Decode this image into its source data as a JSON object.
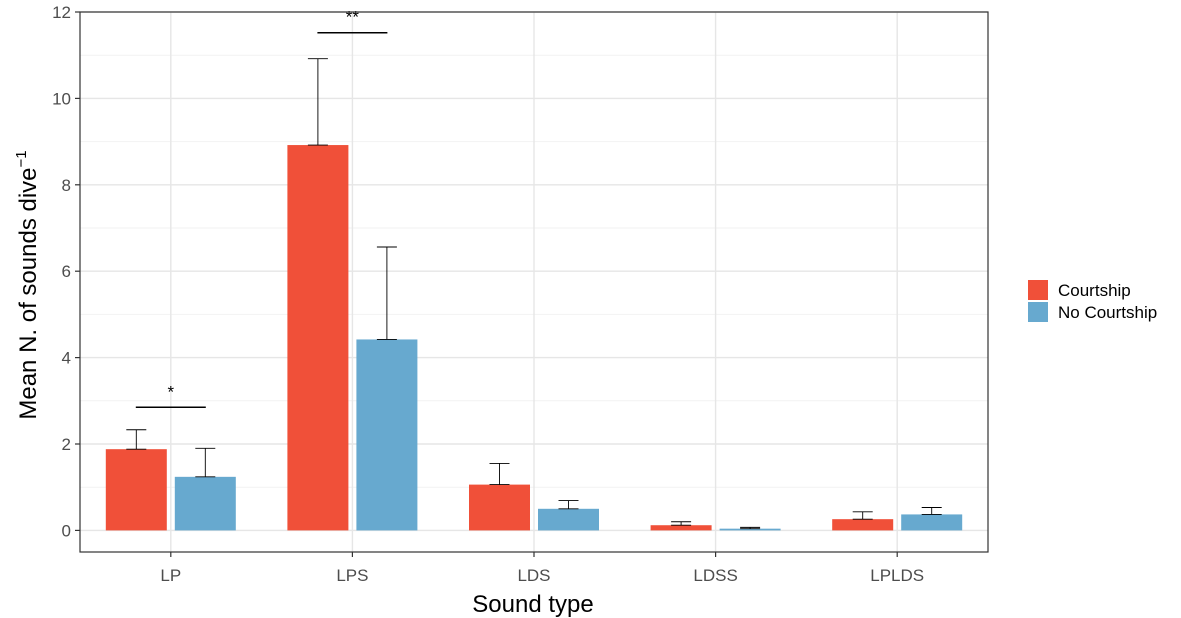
{
  "chart_data": {
    "type": "bar",
    "xlabel": "Sound type",
    "ylabel": "Mean N. of sounds dive",
    "ylabel_superscript": "−1",
    "ylim": [
      -0.5,
      12
    ],
    "yticks": [
      0,
      2,
      4,
      6,
      8,
      10,
      12
    ],
    "categories": [
      "LP",
      "LPS",
      "LDS",
      "LDSS",
      "LPLDS"
    ],
    "series": [
      {
        "name": "Courtship",
        "color": "#F05039",
        "values": [
          1.88,
          8.92,
          1.06,
          0.12,
          0.26
        ],
        "error_upper": [
          2.33,
          10.92,
          1.55,
          0.2,
          0.43
        ]
      },
      {
        "name": "No Courtship",
        "color": "#67A9CF",
        "values": [
          1.24,
          4.42,
          0.5,
          0.04,
          0.37
        ],
        "error_upper": [
          1.9,
          6.56,
          0.69,
          0.07,
          0.53
        ]
      }
    ],
    "significance": [
      {
        "category": "LP",
        "label": "*",
        "y": 2.85
      },
      {
        "category": "LPS",
        "label": "**",
        "y": 11.52
      }
    ],
    "grid": true,
    "legend_position": "right"
  }
}
